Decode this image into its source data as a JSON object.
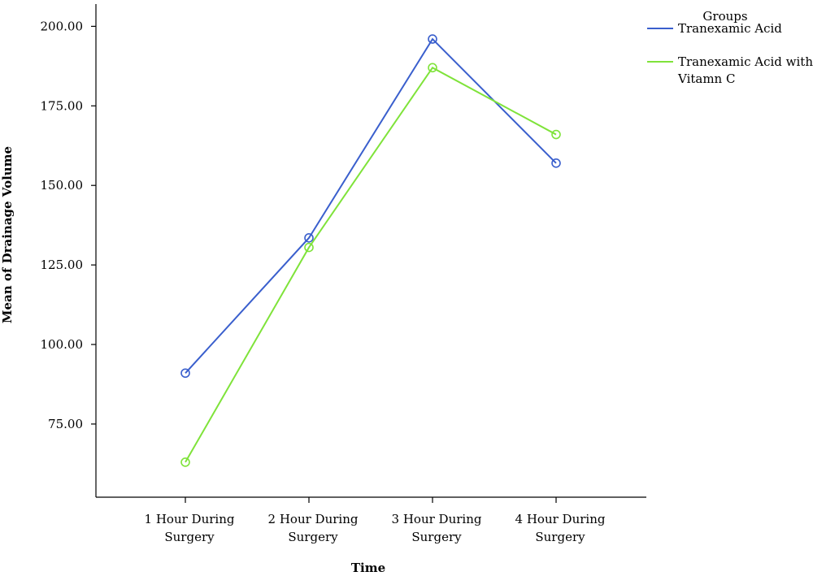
{
  "chart_data": {
    "type": "line",
    "title": "",
    "xlabel": "Time",
    "ylabel": "Mean of Drainage Volume",
    "categories": [
      [
        "1 Hour During",
        "Surgery"
      ],
      [
        "2 Hour During",
        "Surgery"
      ],
      [
        "3 Hour During",
        "Surgery"
      ],
      [
        "4 Hour During",
        "Surgery"
      ]
    ],
    "y_ticks": [
      "75.00",
      "100.00",
      "125.00",
      "150.00",
      "175.00",
      "200.00"
    ],
    "ylim": [
      52,
      207
    ],
    "grid": false,
    "legend": {
      "title": "Groups",
      "position": "top-right"
    },
    "series": [
      {
        "name": "Tranexamic Acid",
        "name_lines": [
          "Tranexamic Acid"
        ],
        "color": "#3a5fcd",
        "values": [
          91,
          133.5,
          196,
          157
        ]
      },
      {
        "name": "Tranexamic Acid with Vitamn C",
        "name_lines": [
          "Tranexamic Acid with",
          "Vitamn C"
        ],
        "color": "#7fe33a",
        "values": [
          63,
          130.5,
          187,
          166
        ]
      }
    ]
  }
}
